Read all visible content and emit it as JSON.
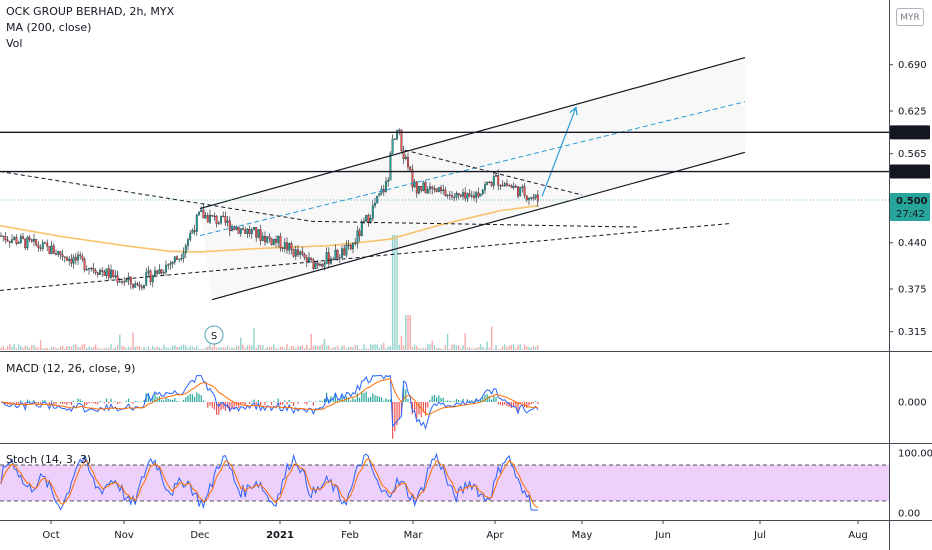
{
  "chart_data": [
    {
      "type": "candlestick",
      "title": "OCK GROUP BERHAD, 2h, MYX",
      "currency": "MYR",
      "indicators": [
        "MA (200, close)",
        "Vol"
      ],
      "x_ticks": [
        "Oct",
        "Nov",
        "Dec",
        "2021",
        "Feb",
        "Mar",
        "Apr",
        "May",
        "Jun",
        "Jul",
        "Aug"
      ],
      "y_ticks": [
        0.69,
        0.625,
        0.565,
        0.5,
        0.44,
        0.375,
        0.315
      ],
      "ylim": [
        0.3,
        0.745
      ],
      "last_price": 0.5,
      "countdown": "27:42",
      "horizontal_levels": [
        0.595,
        0.54
      ],
      "dividend_marker": "S",
      "approx_price_path": [
        [
          "Sep",
          0.45
        ],
        [
          "Oct",
          0.43
        ],
        [
          "Nov (early)",
          0.38
        ],
        [
          "Nov (late)",
          0.42
        ],
        [
          "Dec",
          0.48
        ],
        [
          "Jan",
          0.44
        ],
        [
          "Jan (mid)",
          0.41
        ],
        [
          "Feb",
          0.43
        ],
        [
          "Feb (late)",
          0.57
        ],
        [
          "Mar",
          0.52
        ],
        [
          "Mar (late)",
          0.5
        ],
        [
          "Apr",
          0.53
        ],
        [
          "Apr (mid)",
          0.5
        ]
      ],
      "trendlines": {
        "channel_upper": [
          [
            "Dec",
            0.488
          ],
          [
            "Aug",
            0.7
          ]
        ],
        "channel_lower": [
          [
            "Dec (early)",
            0.36
          ],
          [
            "Aug",
            0.567
          ]
        ],
        "channel_mid_dashed": [
          [
            "Dec",
            0.45
          ],
          [
            "Aug",
            0.638
          ]
        ],
        "triangle_top_dashed": [
          [
            "Sep",
            0.54
          ],
          [
            "Jan (mid)",
            0.47
          ],
          [
            "May (late)",
            0.462
          ]
        ],
        "triangle_upper_dashed": [
          [
            "Feb (late)",
            0.57
          ],
          [
            "May",
            0.507
          ]
        ],
        "support_dashed": [
          [
            "Sep",
            0.373
          ],
          [
            "Aug",
            0.467
          ]
        ]
      },
      "projection_arrow": [
        [
          "Apr (mid)",
          0.505
        ],
        [
          "May",
          0.63
        ]
      ]
    },
    {
      "type": "line",
      "title": "MACD (12, 26, close, 9)",
      "y_ticks": [
        0.0
      ],
      "series": [
        {
          "name": "MACD",
          "color": "#2962ff"
        },
        {
          "name": "Signal",
          "color": "#ff6d00"
        }
      ]
    },
    {
      "type": "line",
      "title": "Stoch (14, 3, 3)",
      "y_ticks": [
        100.0,
        0.0
      ],
      "band": [
        80,
        20
      ],
      "series": [
        {
          "name": "%K",
          "color": "#2962ff"
        },
        {
          "name": "%D",
          "color": "#ff6d00"
        }
      ]
    }
  ],
  "labels": {
    "price_595": "0.595",
    "price_540": "0.540",
    "price_500": "0.500",
    "currency": "MYR"
  }
}
